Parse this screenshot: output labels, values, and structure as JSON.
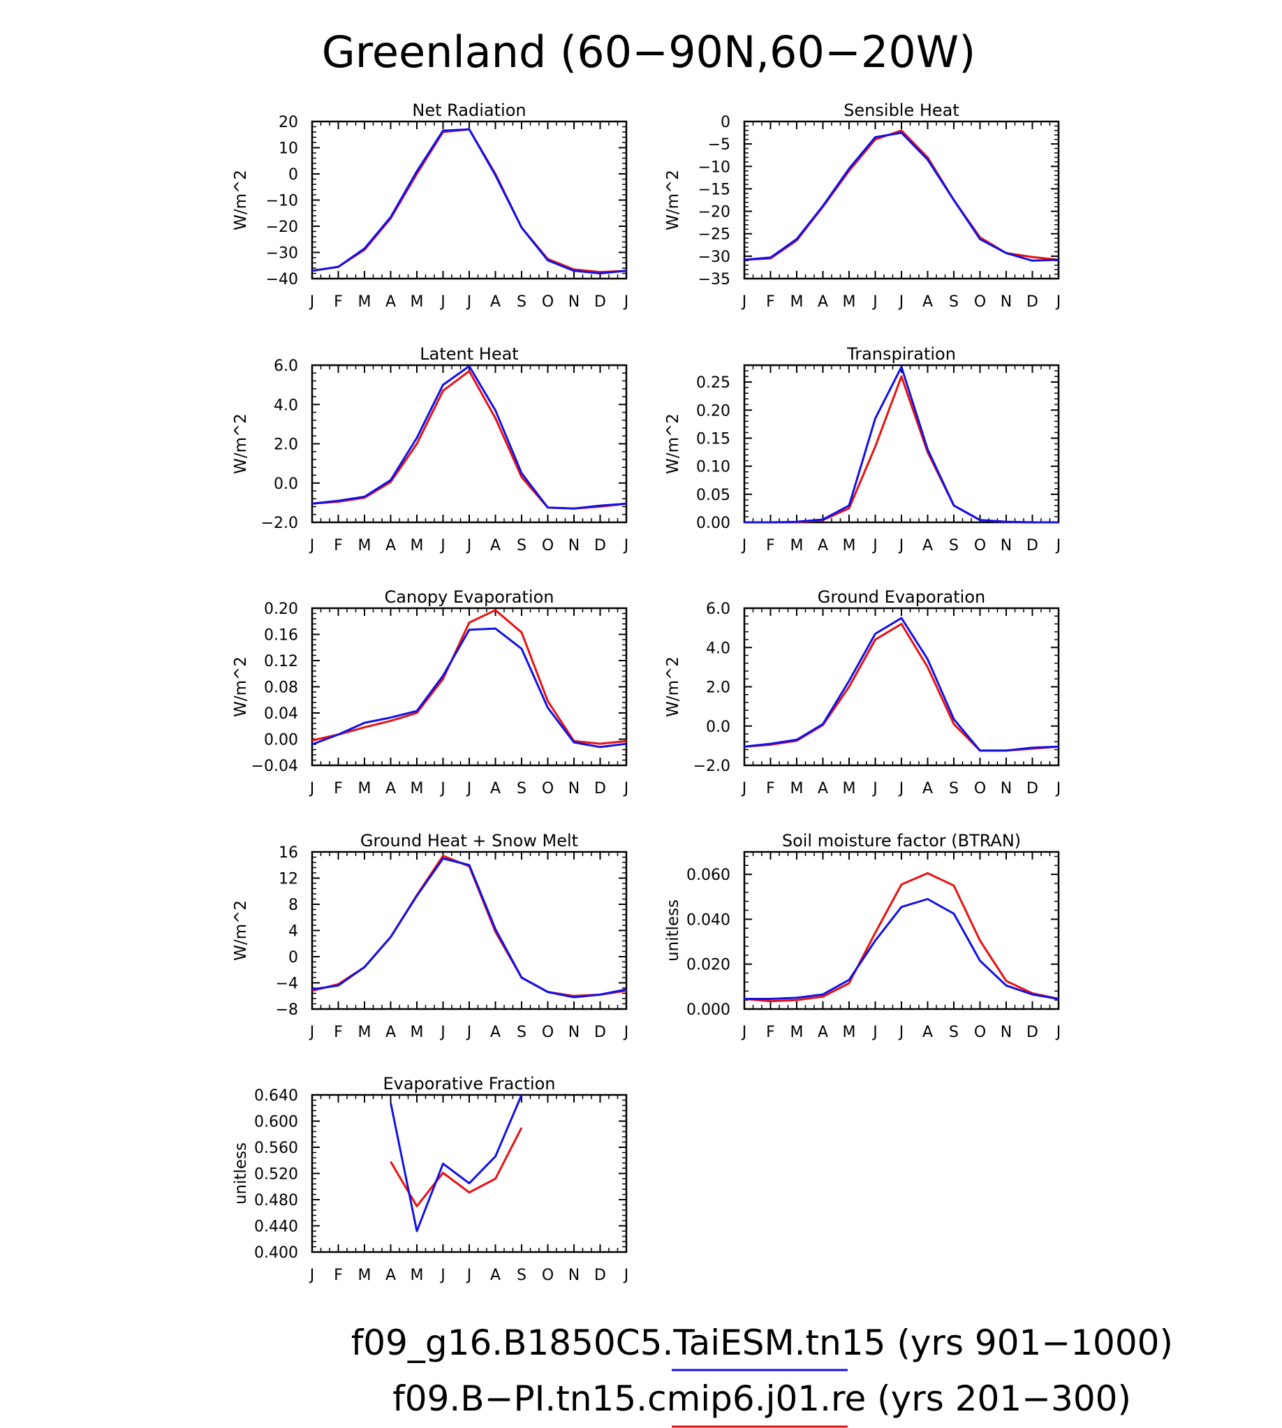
{
  "figure": {
    "title": "Greenland (60−90N,60−20W)"
  },
  "legend": [
    {
      "label": "f09_g16.B1850C5.TaiESM.tn15 (yrs 901−1000)",
      "color": "#1010e8"
    },
    {
      "label": "f09.B−PI.tn15.cmip6.j01.re (yrs 201−300)",
      "color": "#e81010"
    }
  ],
  "chart_data": [
    {
      "type": "line",
      "title": "Net Radiation",
      "ylabel": "W/m^2",
      "x": [
        "J",
        "F",
        "M",
        "A",
        "M",
        "J",
        "J",
        "A",
        "S",
        "O",
        "N",
        "D",
        "J"
      ],
      "ylim": [
        -40,
        20
      ],
      "yticks": [
        "20",
        "10",
        "0",
        "−10",
        "−20",
        "−30",
        "−40"
      ],
      "ytick_values": [
        20,
        10,
        0,
        -10,
        -20,
        -30,
        -40
      ],
      "series": [
        {
          "color": "#e81010",
          "values": [
            -37,
            -35.5,
            -29,
            -17,
            0,
            16,
            17,
            0,
            -20.5,
            -32.5,
            -36.5,
            -37.5,
            -37
          ]
        },
        {
          "color": "#1010e8",
          "values": [
            -37,
            -35.5,
            -28.5,
            -16.5,
            1,
            16.5,
            17,
            -0.5,
            -20.5,
            -33,
            -37,
            -38,
            -37
          ]
        }
      ]
    },
    {
      "type": "line",
      "title": "Sensible Heat",
      "ylabel": "W/m^2",
      "x": [
        "J",
        "F",
        "M",
        "A",
        "M",
        "J",
        "J",
        "A",
        "S",
        "O",
        "N",
        "D",
        "J"
      ],
      "ylim": [
        -35,
        0
      ],
      "yticks": [
        "0",
        "−5",
        "−10",
        "−15",
        "−20",
        "−25",
        "−30",
        "−35"
      ],
      "ytick_values": [
        0,
        -5,
        -10,
        -15,
        -20,
        -25,
        -30,
        -35
      ],
      "series": [
        {
          "color": "#e81010",
          "values": [
            -30.8,
            -30.5,
            -26.5,
            -19,
            -11,
            -4,
            -2,
            -8,
            -17.5,
            -25.8,
            -29.3,
            -30.2,
            -30.8
          ]
        },
        {
          "color": "#1010e8",
          "values": [
            -30.8,
            -30.3,
            -26.2,
            -18.8,
            -10.5,
            -3.5,
            -2.5,
            -8.5,
            -17.5,
            -26.2,
            -29.3,
            -31,
            -30.8
          ]
        }
      ]
    },
    {
      "type": "line",
      "title": "Latent Heat",
      "ylabel": "W/m^2",
      "x": [
        "J",
        "F",
        "M",
        "A",
        "M",
        "J",
        "J",
        "A",
        "S",
        "O",
        "N",
        "D",
        "J"
      ],
      "ylim": [
        -2,
        6
      ],
      "yticks": [
        "6.0",
        "4.0",
        "2.0",
        "0.0",
        "−2.0"
      ],
      "ytick_values": [
        6,
        4,
        2,
        0,
        -2
      ],
      "series": [
        {
          "color": "#e81010",
          "values": [
            -1.05,
            -0.95,
            -0.75,
            0.05,
            2,
            4.7,
            5.7,
            3.3,
            0.3,
            -1.25,
            -1.3,
            -1.2,
            -1.05
          ]
        },
        {
          "color": "#1010e8",
          "values": [
            -1.05,
            -0.9,
            -0.7,
            0.15,
            2.3,
            5,
            5.95,
            3.7,
            0.5,
            -1.25,
            -1.3,
            -1.15,
            -1.05
          ]
        }
      ]
    },
    {
      "type": "line",
      "title": "Transpiration",
      "ylabel": "W/m^2",
      "x": [
        "J",
        "F",
        "M",
        "A",
        "M",
        "J",
        "J",
        "A",
        "S",
        "O",
        "N",
        "D",
        "J"
      ],
      "ylim": [
        0,
        0.28
      ],
      "yticks": [
        "0.25",
        "0.20",
        "0.15",
        "0.10",
        "0.05",
        "0.00"
      ],
      "ytick_values": [
        0.25,
        0.2,
        0.15,
        0.1,
        0.05,
        0
      ],
      "series": [
        {
          "color": "#e81010",
          "values": [
            0,
            0,
            0,
            0.004,
            0.025,
            0.135,
            0.26,
            0.125,
            0.03,
            0.004,
            0.001,
            0,
            0
          ]
        },
        {
          "color": "#1010e8",
          "values": [
            0,
            0,
            0.001,
            0.005,
            0.03,
            0.185,
            0.277,
            0.13,
            0.03,
            0.004,
            0.001,
            0,
            0
          ]
        }
      ]
    },
    {
      "type": "line",
      "title": "Canopy Evaporation",
      "ylabel": "W/m^2",
      "x": [
        "J",
        "F",
        "M",
        "A",
        "M",
        "J",
        "J",
        "A",
        "S",
        "O",
        "N",
        "D",
        "J"
      ],
      "ylim": [
        -0.04,
        0.2
      ],
      "yticks": [
        "0.20",
        "0.16",
        "0.12",
        "0.08",
        "0.04",
        "0.00",
        "−0.04"
      ],
      "ytick_values": [
        0.2,
        0.16,
        0.12,
        0.08,
        0.04,
        0,
        -0.04
      ],
      "series": [
        {
          "color": "#e81010",
          "values": [
            -0.002,
            0.007,
            0.018,
            0.028,
            0.04,
            0.092,
            0.178,
            0.197,
            0.163,
            0.058,
            -0.003,
            -0.007,
            -0.003
          ]
        },
        {
          "color": "#1010e8",
          "values": [
            -0.008,
            0.007,
            0.025,
            0.033,
            0.043,
            0.097,
            0.167,
            0.169,
            0.138,
            0.048,
            -0.005,
            -0.012,
            -0.007
          ]
        }
      ]
    },
    {
      "type": "line",
      "title": "Ground Evaporation",
      "ylabel": "W/m^2",
      "x": [
        "J",
        "F",
        "M",
        "A",
        "M",
        "J",
        "J",
        "A",
        "S",
        "O",
        "N",
        "D",
        "J"
      ],
      "ylim": [
        -2,
        6
      ],
      "yticks": [
        "6.0",
        "4.0",
        "2.0",
        "0.0",
        "−2.0"
      ],
      "ytick_values": [
        6,
        4,
        2,
        0,
        -2
      ],
      "series": [
        {
          "color": "#e81010",
          "values": [
            -1.05,
            -0.95,
            -0.75,
            0.05,
            2,
            4.4,
            5.2,
            3,
            0.1,
            -1.25,
            -1.25,
            -1.15,
            -1.05
          ]
        },
        {
          "color": "#1010e8",
          "values": [
            -1.05,
            -0.9,
            -0.7,
            0.1,
            2.3,
            4.7,
            5.5,
            3.4,
            0.35,
            -1.25,
            -1.25,
            -1.1,
            -1.05
          ]
        }
      ]
    },
    {
      "type": "line",
      "title": "Ground Heat + Snow Melt",
      "ylabel": "W/m^2",
      "x": [
        "J",
        "F",
        "M",
        "A",
        "M",
        "J",
        "J",
        "A",
        "S",
        "O",
        "N",
        "D",
        "J"
      ],
      "ylim": [
        -8,
        16
      ],
      "yticks": [
        "16",
        "12",
        "8",
        "4",
        "0",
        "−4",
        "−8"
      ],
      "ytick_values": [
        16,
        12,
        8,
        4,
        0,
        -4,
        -8
      ],
      "series": [
        {
          "color": "#e81010",
          "values": [
            -5.2,
            -4.2,
            -1.6,
            3,
            9.4,
            15.4,
            13.8,
            3.8,
            -3.2,
            -5.4,
            -6,
            -5.8,
            -5.2
          ]
        },
        {
          "color": "#1010e8",
          "values": [
            -5,
            -4.4,
            -1.6,
            3,
            9.3,
            15,
            14,
            4.2,
            -3.2,
            -5.4,
            -6.2,
            -5.8,
            -5
          ]
        }
      ]
    },
    {
      "type": "line",
      "title": "Soil moisture factor (BTRAN)",
      "ylabel": "unitless",
      "x": [
        "J",
        "F",
        "M",
        "A",
        "M",
        "J",
        "J",
        "A",
        "S",
        "O",
        "N",
        "D",
        "J"
      ],
      "ylim": [
        0,
        0.07
      ],
      "yticks": [
        "0.060",
        "0.040",
        "0.020",
        "0.000"
      ],
      "ytick_values": [
        0.06,
        0.04,
        0.02,
        0
      ],
      "series": [
        {
          "color": "#e81010",
          "values": [
            0.0045,
            0.0035,
            0.004,
            0.0055,
            0.0115,
            0.034,
            0.0555,
            0.0605,
            0.055,
            0.0305,
            0.0125,
            0.007,
            0.0045
          ]
        },
        {
          "color": "#1010e8",
          "values": [
            0.0045,
            0.0045,
            0.005,
            0.0065,
            0.013,
            0.0305,
            0.0455,
            0.049,
            0.0425,
            0.0215,
            0.0105,
            0.0065,
            0.0045
          ]
        }
      ]
    },
    {
      "type": "line",
      "title": "Evaporative Fraction",
      "ylabel": "unitless",
      "x": [
        "J",
        "F",
        "M",
        "A",
        "M",
        "J",
        "J",
        "A",
        "S",
        "O",
        "N",
        "D",
        "J"
      ],
      "ylim": [
        0.4,
        0.64
      ],
      "yticks": [
        "0.640",
        "0.600",
        "0.560",
        "0.520",
        "0.480",
        "0.440",
        "0.400"
      ],
      "ytick_values": [
        0.64,
        0.6,
        0.56,
        0.52,
        0.48,
        0.44,
        0.4
      ],
      "series": [
        {
          "color": "#e81010",
          "values": [
            null,
            null,
            null,
            0.538,
            0.47,
            0.521,
            0.491,
            0.512,
            0.59,
            null,
            null,
            null,
            null
          ]
        },
        {
          "color": "#1010e8",
          "values": [
            null,
            null,
            null,
            0.628,
            0.432,
            0.535,
            0.505,
            0.546,
            0.64,
            null,
            null,
            null,
            null
          ]
        }
      ]
    }
  ]
}
